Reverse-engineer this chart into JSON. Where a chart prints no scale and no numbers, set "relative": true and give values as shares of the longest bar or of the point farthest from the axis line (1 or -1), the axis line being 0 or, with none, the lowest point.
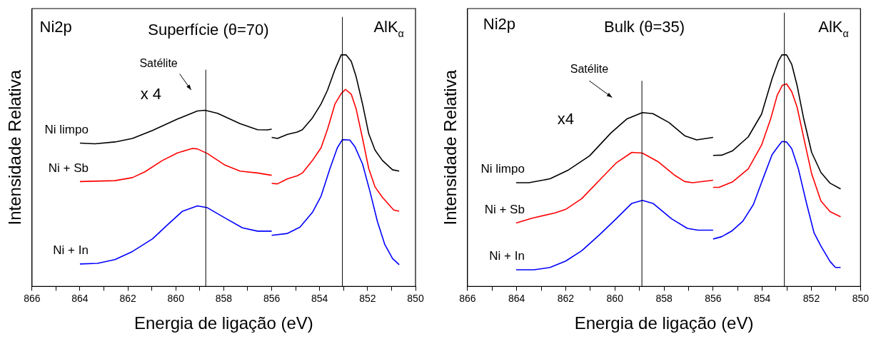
{
  "chart_data": [
    {
      "type": "line",
      "title": "Superfície (θ=70)",
      "xlabel": "Energia de ligação (eV)",
      "ylabel": "Intensidade Relativa",
      "relative": true,
      "xlim": [
        866,
        850
      ],
      "xticks": [
        866,
        {
          "value": 865,
          "label": null
        },
        864,
        {
          "value": 863,
          "label": null
        },
        862,
        {
          "value": 861,
          "label": null
        },
        860,
        {
          "value": 859,
          "label": null
        },
        858,
        {
          "value": 857,
          "label": null
        },
        856,
        {
          "value": 855,
          "label": null
        },
        854,
        {
          "value": 853,
          "label": null
        },
        852,
        {
          "value": 851,
          "label": null
        },
        850
      ],
      "grid": false,
      "legend": false,
      "marker": "none",
      "line_style": "solid",
      "tick_labels": "x",
      "annotations": [
        "Ni2p",
        "AlK$_{α}$",
        "Satélite",
        "x 4"
      ],
      "ref_lines": [
        {
          "axis": "x",
          "value": 858.75,
          "color": "#000000"
        },
        {
          "axis": "x",
          "value": 853.05,
          "color": "#000000"
        }
      ],
      "series": [
        {
          "name": "Ni limpo",
          "color": "#000000",
          "x": [
            864.0,
            863.37,
            862.54,
            861.81,
            860.97,
            859.93,
            859.1,
            858.78,
            858.26,
            857.32,
            856.59,
            856.18,
            856.0,
            856.0,
            855.76,
            855.34,
            854.93,
            854.72,
            854.3,
            853.94,
            853.67,
            853.36,
            853.1,
            852.89,
            852.68,
            852.48,
            852.21,
            851.95,
            851.69,
            851.38,
            850.96,
            850.68
          ],
          "values": [
            0.619,
            0.616,
            0.624,
            0.639,
            0.674,
            0.723,
            0.758,
            0.761,
            0.748,
            0.703,
            0.677,
            0.676,
            0.679,
            0.644,
            0.639,
            0.657,
            0.667,
            0.677,
            0.728,
            0.788,
            0.848,
            0.937,
            1.0,
            1.0,
            0.972,
            0.907,
            0.788,
            0.659,
            0.589,
            0.544,
            0.504,
            0.498
          ]
        },
        {
          "name": "Ni + Sb",
          "color": "#ff0000",
          "x": [
            864.0,
            862.54,
            861.81,
            861.29,
            860.56,
            859.93,
            859.31,
            859.1,
            858.68,
            857.95,
            857.32,
            856.59,
            856.0,
            856.0,
            855.76,
            855.34,
            854.93,
            854.72,
            854.3,
            853.94,
            853.67,
            853.36,
            853.1,
            852.92,
            852.68,
            852.48,
            852.21,
            851.95,
            851.69,
            851.38,
            850.91,
            850.68
          ],
          "values": [
            0.453,
            0.457,
            0.47,
            0.495,
            0.544,
            0.577,
            0.596,
            0.594,
            0.574,
            0.524,
            0.498,
            0.49,
            0.48,
            0.445,
            0.443,
            0.465,
            0.478,
            0.49,
            0.544,
            0.599,
            0.679,
            0.788,
            0.833,
            0.851,
            0.83,
            0.768,
            0.639,
            0.509,
            0.43,
            0.385,
            0.33,
            0.325
          ]
        },
        {
          "name": "Ni + In",
          "color": "#0000ff",
          "x": [
            864.0,
            863.27,
            862.54,
            861.81,
            860.97,
            860.35,
            859.72,
            859.1,
            858.68,
            857.95,
            857.22,
            856.59,
            856.0,
            856.0,
            855.34,
            854.82,
            854.3,
            853.94,
            853.57,
            853.26,
            853.05,
            852.74,
            852.53,
            852.21,
            851.9,
            851.59,
            851.28,
            850.96,
            850.68
          ],
          "values": [
            0.097,
            0.1,
            0.116,
            0.151,
            0.206,
            0.266,
            0.325,
            0.348,
            0.34,
            0.296,
            0.253,
            0.239,
            0.239,
            0.221,
            0.229,
            0.256,
            0.32,
            0.39,
            0.509,
            0.599,
            0.634,
            0.632,
            0.604,
            0.529,
            0.41,
            0.281,
            0.181,
            0.121,
            0.094
          ]
        }
      ]
    },
    {
      "type": "line",
      "title": "Bulk (θ=35)",
      "xlabel": "Energia de ligação (eV)",
      "ylabel": "Intensidade Relativa",
      "relative": true,
      "xlim": [
        866,
        850
      ],
      "xticks": [
        866,
        {
          "value": 865,
          "label": null
        },
        864,
        {
          "value": 863,
          "label": null
        },
        862,
        {
          "value": 861,
          "label": null
        },
        860,
        {
          "value": 859,
          "label": null
        },
        858,
        {
          "value": 857,
          "label": null
        },
        856,
        {
          "value": 855,
          "label": null
        },
        854,
        {
          "value": 853,
          "label": null
        },
        852,
        {
          "value": 851,
          "label": null
        },
        850
      ],
      "grid": false,
      "legend": false,
      "marker": "none",
      "line_style": "solid",
      "tick_labels": "x",
      "annotations": [
        "Ni2p",
        "AlK$_{α}$",
        "Satélite",
        "x4"
      ],
      "ref_lines": [
        {
          "axis": "x",
          "value": 858.9,
          "color": "#000000"
        },
        {
          "axis": "x",
          "value": 853.1,
          "color": "#000000"
        }
      ],
      "series": [
        {
          "name": "Ni limpo",
          "color": "#000000",
          "x": [
            864.02,
            863.5,
            862.64,
            861.89,
            861.03,
            860.17,
            859.52,
            858.88,
            858.45,
            857.8,
            857.16,
            856.67,
            856.0,
            856.0,
            855.65,
            855.22,
            854.57,
            854.03,
            853.6,
            853.34,
            853.2,
            853.01,
            852.8,
            852.58,
            852.31,
            851.99,
            851.61,
            851.24,
            850.81
          ],
          "values": [
            0.448,
            0.448,
            0.465,
            0.503,
            0.564,
            0.662,
            0.723,
            0.751,
            0.746,
            0.708,
            0.651,
            0.633,
            0.644,
            0.566,
            0.567,
            0.585,
            0.646,
            0.744,
            0.897,
            0.974,
            1.0,
            1.0,
            0.959,
            0.867,
            0.723,
            0.579,
            0.492,
            0.446,
            0.421
          ]
        },
        {
          "name": "Ni + Sb",
          "color": "#ff0000",
          "x": [
            864.02,
            863.4,
            862.43,
            862.0,
            861.35,
            860.6,
            859.95,
            859.31,
            858.88,
            858.23,
            857.59,
            857.16,
            856.83,
            856.0,
            856.0,
            855.76,
            855.22,
            854.57,
            854.03,
            853.66,
            853.39,
            853.18,
            853.01,
            852.8,
            852.58,
            852.31,
            851.99,
            851.61,
            851.24,
            850.81
          ],
          "values": [
            0.274,
            0.294,
            0.318,
            0.333,
            0.379,
            0.462,
            0.533,
            0.579,
            0.576,
            0.538,
            0.482,
            0.453,
            0.448,
            0.459,
            0.428,
            0.428,
            0.451,
            0.508,
            0.61,
            0.723,
            0.826,
            0.869,
            0.875,
            0.841,
            0.774,
            0.641,
            0.487,
            0.369,
            0.323,
            0.301
          ]
        },
        {
          "name": "Ni + In",
          "color": "#0000ff",
          "x": [
            864.02,
            863.29,
            862.64,
            862.0,
            861.35,
            860.6,
            859.95,
            859.31,
            858.88,
            858.45,
            857.69,
            857.05,
            856.62,
            856.0,
            856.0,
            855.65,
            855.22,
            854.79,
            854.36,
            853.93,
            853.6,
            853.39,
            853.2,
            853.01,
            852.8,
            852.53,
            852.21,
            851.89,
            851.61,
            851.24,
            851.02,
            850.81
          ],
          "values": [
            0.072,
            0.072,
            0.082,
            0.11,
            0.154,
            0.226,
            0.292,
            0.359,
            0.372,
            0.359,
            0.292,
            0.251,
            0.243,
            0.243,
            0.205,
            0.215,
            0.241,
            0.282,
            0.354,
            0.477,
            0.569,
            0.6,
            0.626,
            0.624,
            0.595,
            0.508,
            0.364,
            0.231,
            0.174,
            0.108,
            0.082,
            0.082
          ]
        }
      ]
    }
  ]
}
